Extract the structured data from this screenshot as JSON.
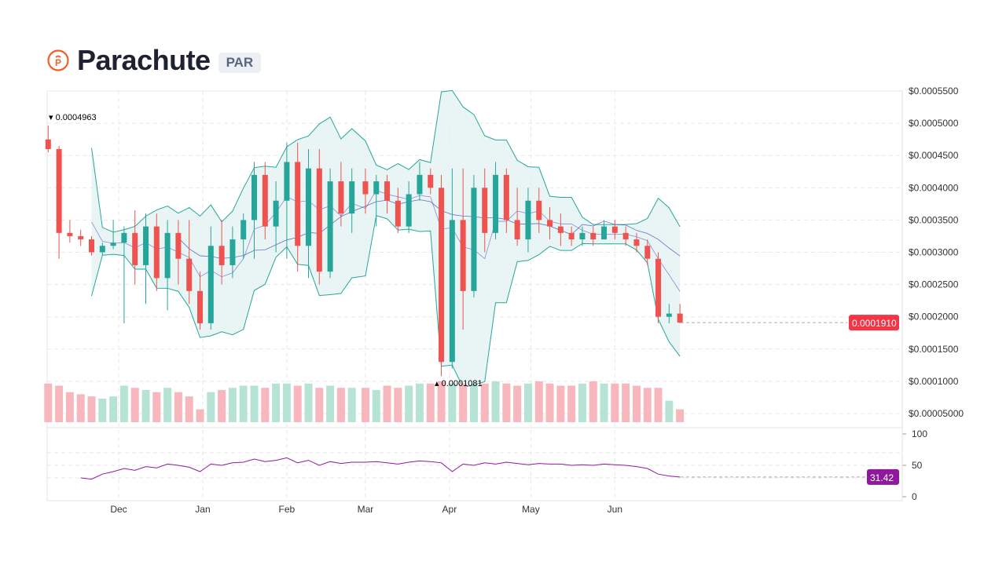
{
  "header": {
    "name": "Parachute",
    "symbol": "PAR",
    "logo_letter": "P",
    "brand_color": "#f0602a"
  },
  "colors": {
    "up": "#26a69a",
    "down": "#ef5350",
    "band_fill": "#e3f3f1",
    "band_line": "#26a69a",
    "ma_line": "#6a5acd",
    "rsi_line": "#8e1a9b",
    "last_price_bg": "#f23645"
  },
  "chart_data": {
    "type": "candlestick",
    "price_axis_labels": [
      "$0.0005500",
      "$0.0005000",
      "$0.0004500",
      "$0.0004000",
      "$0.0003500",
      "$0.0003000",
      "$0.0002500",
      "$0.0002000",
      "$0.0001500",
      "$0.0001000",
      "$0.00005000"
    ],
    "price_axis_values": [
      0.00055,
      0.0005,
      0.00045,
      0.0004,
      0.00035,
      0.0003,
      0.00025,
      0.0002,
      0.00015,
      0.0001,
      5e-05
    ],
    "month_labels": [
      {
        "label": "Dec",
        "date": "Dec 01"
      },
      {
        "label": "Jan",
        "date": "Jan 01"
      },
      {
        "label": "Feb",
        "date": "Feb 01"
      },
      {
        "label": "Mar",
        "date": "Mar 01"
      },
      {
        "label": "Apr",
        "date": "Apr 01"
      },
      {
        "label": "May",
        "date": "May 01"
      },
      {
        "label": "Jun",
        "date": "Jun 01"
      }
    ],
    "max_marker": "0.0004963",
    "min_marker": "0.0001081",
    "last_price": "0.0001910",
    "rsi_axis_labels": [
      "100",
      "50",
      "0"
    ],
    "rsi_last": "31.42",
    "candles": [
      [
        "Nov 05",
        0.000475,
        0.0004963,
        0.000455,
        0.00046
      ],
      [
        "Nov 09",
        0.00046,
        0.000465,
        0.00029,
        0.00033
      ],
      [
        "Nov 13",
        0.00033,
        0.00035,
        0.000315,
        0.000325
      ],
      [
        "Nov 17",
        0.000325,
        0.000335,
        0.00031,
        0.00032
      ],
      [
        "Nov 21",
        0.00032,
        0.000325,
        0.000295,
        0.0003
      ],
      [
        "Nov 25",
        0.0003,
        0.000315,
        0.000295,
        0.00031
      ],
      [
        "Nov 29",
        0.00031,
        0.00035,
        0.000305,
        0.000315
      ],
      [
        "Dec 03",
        0.000315,
        0.00034,
        0.00019,
        0.00033
      ],
      [
        "Dec 07",
        0.00033,
        0.000365,
        0.00025,
        0.00028
      ],
      [
        "Dec 11",
        0.00028,
        0.00036,
        0.00022,
        0.00034
      ],
      [
        "Dec 15",
        0.00034,
        0.00036,
        0.00024,
        0.00026
      ],
      [
        "Dec 19",
        0.00026,
        0.00035,
        0.00021,
        0.00033
      ],
      [
        "Dec 23",
        0.00033,
        0.00035,
        0.00025,
        0.00029
      ],
      [
        "Dec 27",
        0.00029,
        0.00035,
        0.00022,
        0.00024
      ],
      [
        "Dec 31",
        0.00024,
        0.00027,
        0.00018,
        0.00019
      ],
      [
        "Jan 04",
        0.00019,
        0.00034,
        0.00018,
        0.00031
      ],
      [
        "Jan 08",
        0.00031,
        0.00035,
        0.00025,
        0.00028
      ],
      [
        "Jan 12",
        0.00028,
        0.00034,
        0.00026,
        0.00032
      ],
      [
        "Jan 16",
        0.00032,
        0.00036,
        0.00029,
        0.00035
      ],
      [
        "Jan 20",
        0.00035,
        0.00044,
        0.00029,
        0.00042
      ],
      [
        "Jan 24",
        0.00042,
        0.00044,
        0.00032,
        0.00034
      ],
      [
        "Jan 28",
        0.00034,
        0.00041,
        0.0003,
        0.00038
      ],
      [
        "Feb 01",
        0.00038,
        0.00047,
        0.00029,
        0.00044
      ],
      [
        "Feb 05",
        0.00044,
        0.00047,
        0.00027,
        0.00031
      ],
      [
        "Feb 09",
        0.00031,
        0.00046,
        0.00026,
        0.00043
      ],
      [
        "Feb 13",
        0.00043,
        0.00046,
        0.00025,
        0.00027
      ],
      [
        "Feb 17",
        0.00027,
        0.00043,
        0.00026,
        0.00041
      ],
      [
        "Feb 21",
        0.00041,
        0.00044,
        0.00034,
        0.00036
      ],
      [
        "Feb 25",
        0.00036,
        0.00043,
        0.00033,
        0.00041
      ],
      [
        "Mar 01",
        0.00041,
        0.00043,
        0.00036,
        0.00039
      ],
      [
        "Mar 05",
        0.00039,
        0.00042,
        0.00034,
        0.00041
      ],
      [
        "Mar 09",
        0.00041,
        0.00042,
        0.00036,
        0.00038
      ],
      [
        "Mar 13",
        0.00038,
        0.0004,
        0.00033,
        0.00034
      ],
      [
        "Mar 17",
        0.00034,
        0.00041,
        0.00033,
        0.00039
      ],
      [
        "Mar 21",
        0.00039,
        0.00044,
        0.00038,
        0.00042
      ],
      [
        "Mar 25",
        0.00042,
        0.00043,
        0.00039,
        0.0004
      ],
      [
        "Mar 29",
        0.0004,
        0.00042,
        0.0001081,
        0.00013
      ],
      [
        "Apr 02",
        0.00013,
        0.00043,
        0.00012,
        0.00035
      ],
      [
        "Apr 06",
        0.00035,
        0.00043,
        0.00018,
        0.00024
      ],
      [
        "Apr 10",
        0.00024,
        0.00042,
        0.00023,
        0.0004
      ],
      [
        "Apr 14",
        0.0004,
        0.00043,
        0.0003,
        0.00033
      ],
      [
        "Apr 18",
        0.00033,
        0.00044,
        0.00032,
        0.00042
      ],
      [
        "Apr 22",
        0.00042,
        0.00043,
        0.00033,
        0.00035
      ],
      [
        "Apr 26",
        0.00035,
        0.0004,
        0.00031,
        0.00032
      ],
      [
        "Apr 30",
        0.00032,
        0.0004,
        0.0003,
        0.00038
      ],
      [
        "May 04",
        0.00038,
        0.0004,
        0.00033,
        0.00035
      ],
      [
        "May 08",
        0.00035,
        0.00037,
        0.00032,
        0.00034
      ],
      [
        "May 12",
        0.00034,
        0.00036,
        0.00031,
        0.00033
      ],
      [
        "May 16",
        0.00033,
        0.00034,
        0.00031,
        0.00032
      ],
      [
        "May 20",
        0.00032,
        0.00034,
        0.00031,
        0.00033
      ],
      [
        "May 24",
        0.00033,
        0.00034,
        0.00031,
        0.00032
      ],
      [
        "May 28",
        0.00032,
        0.00035,
        0.00032,
        0.00034
      ],
      [
        "Jun 01",
        0.00034,
        0.00035,
        0.00032,
        0.00033
      ],
      [
        "Jun 05",
        0.00033,
        0.00034,
        0.00031,
        0.00032
      ],
      [
        "Jun 09",
        0.00032,
        0.00033,
        0.0003,
        0.00031
      ],
      [
        "Jun 13",
        0.00031,
        0.00032,
        0.00028,
        0.00029
      ],
      [
        "Jun 17",
        0.00029,
        0.0003,
        0.00019,
        0.0002
      ],
      [
        "Jun 21",
        0.0002,
        0.00022,
        0.00019,
        0.000205
      ],
      [
        "Jun 25",
        0.000205,
        0.00022,
        0.00019,
        0.000191
      ]
    ],
    "volume": [
      0.9,
      0.85,
      0.7,
      0.65,
      0.6,
      0.55,
      0.6,
      0.85,
      0.8,
      0.75,
      0.7,
      0.8,
      0.7,
      0.6,
      0.3,
      0.7,
      0.75,
      0.8,
      0.85,
      0.85,
      0.8,
      0.9,
      0.9,
      0.85,
      0.9,
      0.8,
      0.85,
      0.8,
      0.8,
      0.8,
      0.75,
      0.85,
      0.8,
      0.85,
      0.9,
      0.9,
      0.95,
      0.9,
      0.9,
      0.85,
      0.9,
      0.95,
      0.9,
      0.85,
      0.9,
      0.95,
      0.9,
      0.85,
      0.85,
      0.9,
      0.95,
      0.9,
      0.9,
      0.9,
      0.85,
      0.8,
      0.8,
      0.5,
      0.3
    ],
    "rsi": [
      null,
      null,
      null,
      30,
      28,
      36,
      40,
      45,
      42,
      48,
      46,
      52,
      50,
      47,
      40,
      52,
      50,
      54,
      55,
      60,
      56,
      58,
      62,
      54,
      58,
      50,
      56,
      53,
      55,
      55,
      56,
      54,
      52,
      55,
      57,
      56,
      54,
      40,
      52,
      50,
      54,
      52,
      55,
      53,
      51,
      53,
      52,
      52,
      50,
      51,
      50,
      52,
      51,
      50,
      48,
      45,
      36,
      33,
      31.42
    ]
  }
}
